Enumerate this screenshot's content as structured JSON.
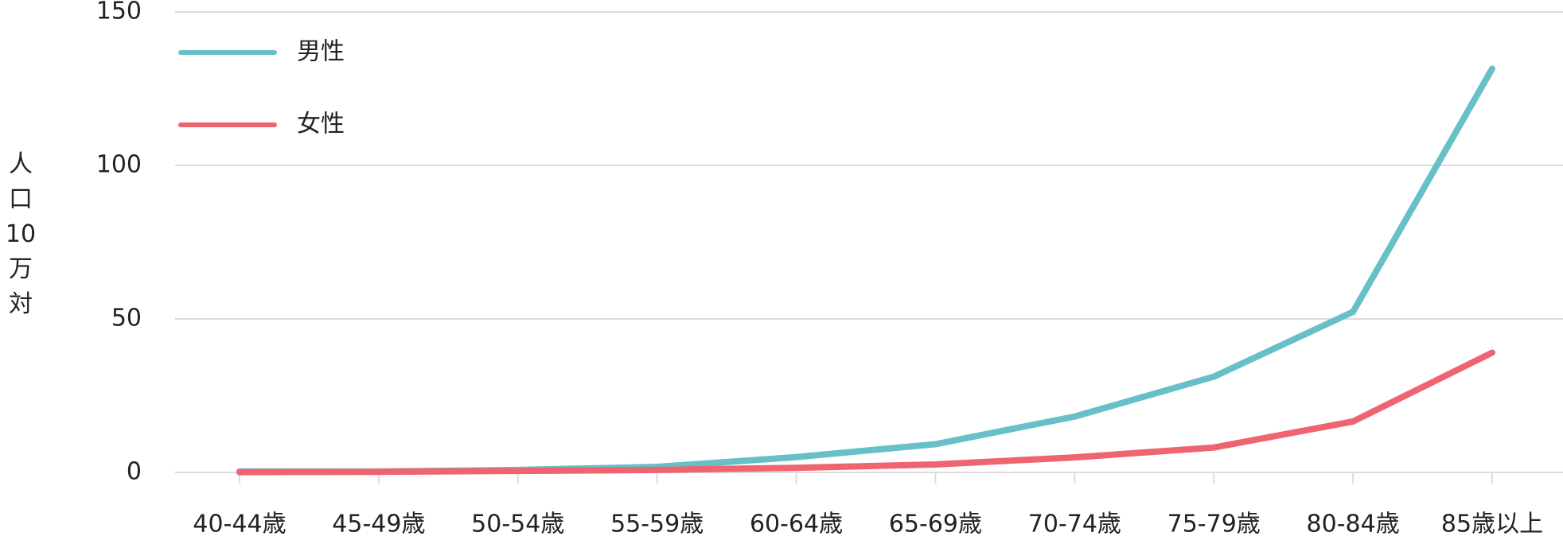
{
  "chart_data": {
    "type": "line",
    "y_label": "人口10万対",
    "categories": [
      "40-44歳",
      "45-49歳",
      "50-54歳",
      "55-59歳",
      "60-64歳",
      "65-69歳",
      "70-74歳",
      "75-79歳",
      "80-84歳",
      "85歳以上"
    ],
    "series": [
      {
        "name": "男性",
        "color": "#67bfc7",
        "values": [
          0.3,
          0.3,
          0.8,
          1.8,
          5,
          9.2,
          18.2,
          31.2,
          52.3,
          131.5
        ]
      },
      {
        "name": "女性",
        "color": "#ee6470",
        "values": [
          0.1,
          0.2,
          0.5,
          0.8,
          1.5,
          2.6,
          4.9,
          8.1,
          16.6,
          39
        ]
      }
    ],
    "ylim": [
      0,
      150
    ],
    "yticks": [
      0,
      50,
      100,
      150
    ],
    "grid": true,
    "legend": "upper-left"
  }
}
